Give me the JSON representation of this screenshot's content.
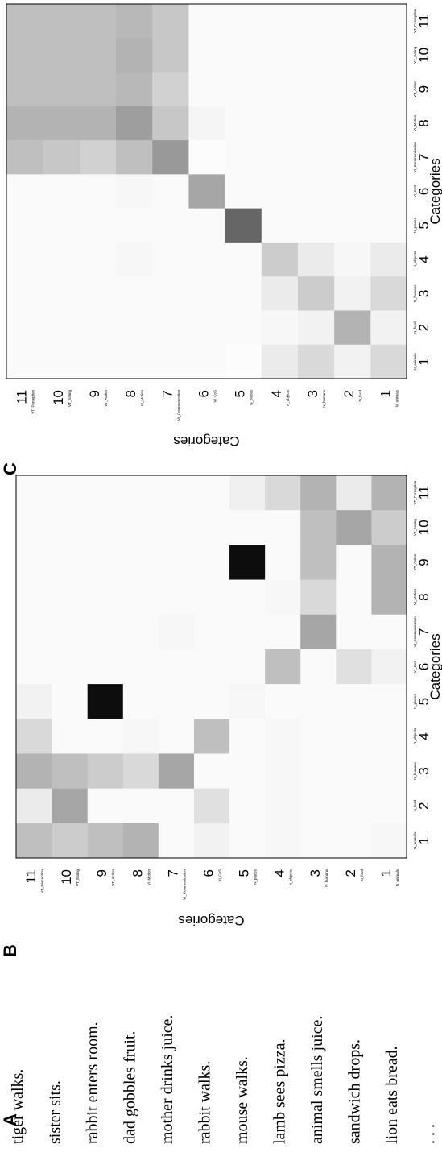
{
  "panel_a": {
    "label": "A",
    "sentences": [
      "tiger walks.",
      "sister sits.",
      "rabbit enters room.",
      "dad gobbles fruit.",
      "mother drinks juice.",
      "rabbit walks.",
      "mouse walks.",
      "lamb sees pizza.",
      "animal smells juice.",
      "sandwich drops.",
      "lion eats bread.",
      ". . ."
    ]
  },
  "chart_data": [
    {
      "type": "heatmap",
      "panel_label": "B",
      "xlabel": "Categories",
      "ylabel": "Categories",
      "categories": [
        "1",
        "2",
        "3",
        "4",
        "5",
        "6",
        "7",
        "8",
        "9",
        "10",
        "11"
      ],
      "category_names": [
        "N_animals",
        "N_food",
        "N_humans",
        "N_objects",
        "N_places",
        "VI_CoS",
        "VI_Communication",
        "VI_Motion",
        "VT_Action",
        "VT_Eating",
        "VT_Perception"
      ],
      "vlim": [
        0,
        1
      ],
      "values": [
        [
          0.03,
          0.02,
          0.02,
          0.02,
          0.02,
          0.05,
          0.02,
          0.3,
          0.3,
          0.2,
          0.3
        ],
        [
          0.02,
          0.02,
          0.02,
          0.02,
          0.02,
          0.12,
          0.02,
          0.02,
          0.02,
          0.35,
          0.08
        ],
        [
          0.02,
          0.02,
          0.02,
          0.02,
          0.02,
          0.02,
          0.35,
          0.15,
          0.25,
          0.25,
          0.3
        ],
        [
          0.03,
          0.03,
          0.03,
          0.03,
          0.02,
          0.25,
          0.02,
          0.03,
          0.02,
          0.02,
          0.15
        ],
        [
          0.02,
          0.02,
          0.02,
          0.02,
          0.03,
          0.02,
          0.02,
          0.02,
          0.95,
          0.02,
          0.06
        ],
        [
          0.05,
          0.12,
          0.02,
          0.25,
          0.02,
          0.02,
          0.02,
          0.02,
          0.02,
          0.02,
          0.02
        ],
        [
          0.02,
          0.02,
          0.35,
          0.02,
          0.02,
          0.02,
          0.03,
          0.02,
          0.02,
          0.02,
          0.02
        ],
        [
          0.3,
          0.02,
          0.15,
          0.03,
          0.02,
          0.02,
          0.02,
          0.02,
          0.02,
          0.02,
          0.02
        ],
        [
          0.25,
          0.02,
          0.2,
          0.02,
          0.95,
          0.02,
          0.02,
          0.02,
          0.02,
          0.02,
          0.02
        ],
        [
          0.2,
          0.35,
          0.25,
          0.02,
          0.02,
          0.02,
          0.02,
          0.02,
          0.02,
          0.02,
          0.02
        ],
        [
          0.25,
          0.08,
          0.3,
          0.15,
          0.05,
          0.02,
          0.02,
          0.02,
          0.02,
          0.02,
          0.02
        ]
      ]
    },
    {
      "type": "heatmap",
      "panel_label": "C",
      "xlabel": "Categories",
      "ylabel": "Categories",
      "categories": [
        "1",
        "2",
        "3",
        "4",
        "5",
        "6",
        "7",
        "8",
        "9",
        "10",
        "11"
      ],
      "category_names": [
        "N_animals",
        "N_food",
        "N_humans",
        "N_objects",
        "N_places",
        "VI_CoS",
        "VI_Communication",
        "VI_Motion",
        "VT_Action",
        "VT_Eating",
        "VT_Perception"
      ],
      "vlim": [
        0,
        1
      ],
      "values": [
        [
          0.15,
          0.05,
          0.15,
          0.08,
          0.02,
          0.02,
          0.02,
          0.02,
          0.02,
          0.02,
          0.02
        ],
        [
          0.05,
          0.3,
          0.05,
          0.03,
          0.02,
          0.02,
          0.02,
          0.02,
          0.02,
          0.02,
          0.02
        ],
        [
          0.15,
          0.05,
          0.2,
          0.08,
          0.02,
          0.02,
          0.02,
          0.02,
          0.02,
          0.02,
          0.02
        ],
        [
          0.08,
          0.03,
          0.08,
          0.2,
          0.02,
          0.02,
          0.02,
          0.02,
          0.02,
          0.02,
          0.02
        ],
        [
          0.01,
          0.02,
          0.02,
          0.02,
          0.6,
          0.02,
          0.02,
          0.02,
          0.02,
          0.02,
          0.02
        ],
        [
          0.02,
          0.02,
          0.02,
          0.02,
          0.02,
          0.35,
          0.01,
          0.04,
          0.02,
          0.02,
          0.02
        ],
        [
          0.02,
          0.02,
          0.02,
          0.02,
          0.02,
          0.02,
          0.4,
          0.22,
          0.18,
          0.22,
          0.22
        ],
        [
          0.02,
          0.02,
          0.02,
          0.03,
          0.02,
          0.03,
          0.25,
          0.38,
          0.28,
          0.3,
          0.28
        ],
        [
          0.02,
          0.02,
          0.02,
          0.02,
          0.02,
          0.02,
          0.18,
          0.3,
          0.25,
          0.25,
          0.25
        ],
        [
          0.02,
          0.02,
          0.02,
          0.02,
          0.02,
          0.02,
          0.22,
          0.3,
          0.25,
          0.25,
          0.25
        ],
        [
          0.02,
          0.02,
          0.02,
          0.02,
          0.02,
          0.02,
          0.25,
          0.3,
          0.25,
          0.25,
          0.25
        ]
      ]
    }
  ]
}
